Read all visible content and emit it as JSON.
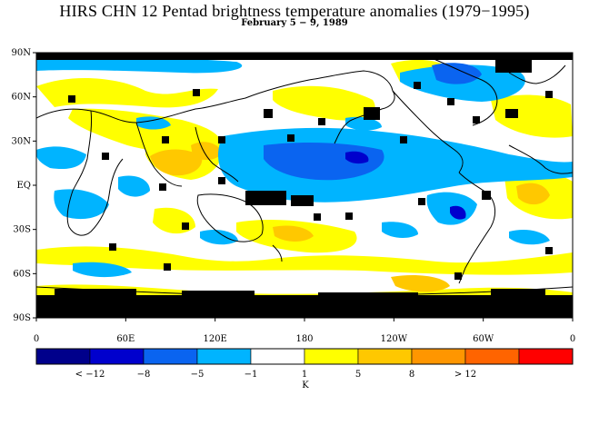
{
  "figure": {
    "title": "HIRS CHN 12 Pentad brightness temperature anomalies (1979−1995)",
    "subtitle": "February 5 − 9, 1989"
  },
  "map": {
    "lat_labels": [
      "90N",
      "60N",
      "30N",
      "EQ",
      "30S",
      "60S",
      "90S"
    ],
    "lon_labels": [
      "0",
      "60E",
      "120E",
      "180",
      "120W",
      "60W",
      "0"
    ],
    "no_data_color": "#000000",
    "coastline_color": "#000000"
  },
  "colorbar": {
    "colors": [
      "#00008b",
      "#0000cd",
      "#0a64f0",
      "#00b4ff",
      "#ffffff",
      "#ffff00",
      "#ffc800",
      "#ff9600",
      "#ff6400",
      "#ff0000"
    ],
    "tick_labels": [
      "< −12",
      "−8",
      "−5",
      "−1",
      "1",
      "5",
      "8",
      "> 12"
    ],
    "unit": "K"
  }
}
